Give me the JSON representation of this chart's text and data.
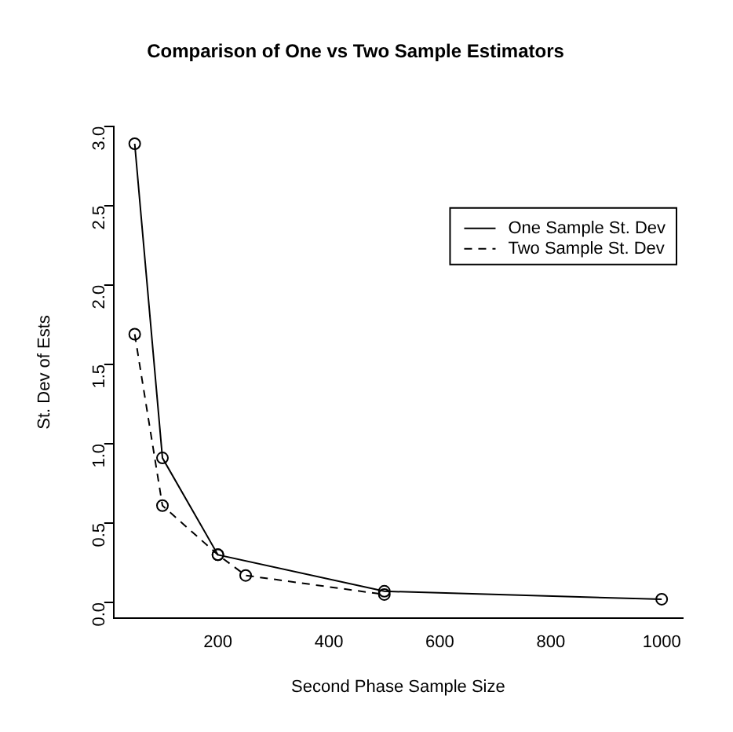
{
  "chart_data": {
    "type": "line",
    "title": "Comparison of One vs Two Sample Estimators",
    "xlabel": "Second Phase Sample Size",
    "ylabel": "St. Dev of Ests",
    "series": [
      {
        "name": "One Sample St. Dev",
        "color": "#000000",
        "line_style": "solid",
        "x": [
          50,
          100,
          200,
          500,
          1000
        ],
        "values": [
          2.89,
          0.91,
          0.3,
          0.07,
          0.02
        ]
      },
      {
        "name": "Two Sample St. Dev",
        "color": "#000000",
        "line_style": "dashed",
        "x": [
          50,
          100,
          200,
          250,
          500
        ],
        "values": [
          1.69,
          0.61,
          0.3,
          0.17,
          0.05
        ]
      }
    ],
    "marker": "circle",
    "xlim": [
      12,
      1038
    ],
    "xticks": [
      200,
      400,
      600,
      800,
      1000
    ],
    "ylim": [
      -0.1,
      3.0
    ],
    "yticks": [
      {
        "value": 0,
        "label": "0.0"
      },
      0.5,
      {
        "value": 1,
        "label": "1.0"
      },
      1.5,
      {
        "value": 2,
        "label": "2.0"
      },
      2.5,
      {
        "value": 3,
        "label": "3.0"
      }
    ],
    "grid": false,
    "legend": "top right"
  }
}
